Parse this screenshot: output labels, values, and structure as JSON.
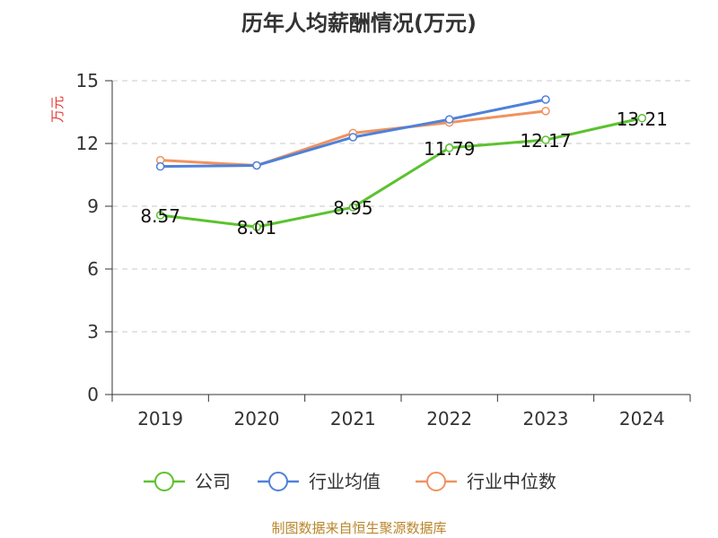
{
  "chart_data": {
    "type": "line",
    "title": "历年人均薪酬情况(万元)",
    "ylabel": "万元",
    "xlabel": "",
    "categories": [
      "2019",
      "2020",
      "2021",
      "2022",
      "2023",
      "2024"
    ],
    "ylim": [
      0,
      15
    ],
    "yticks": [
      0,
      3,
      6,
      9,
      12,
      15
    ],
    "grid": true,
    "legend_position": "bottom",
    "series": [
      {
        "name": "公司",
        "color": "#5cc22f",
        "values": [
          8.57,
          8.01,
          8.95,
          11.79,
          12.17,
          13.21
        ],
        "labels": [
          "8.57",
          "8.01",
          "8.95",
          "11.79",
          "12.17",
          "13.21"
        ]
      },
      {
        "name": "行业均值",
        "color": "#4f81d9",
        "values": [
          10.9,
          10.95,
          12.3,
          13.15,
          14.1,
          null
        ],
        "labels": null
      },
      {
        "name": "行业中位数",
        "color": "#f0925f",
        "values": [
          11.2,
          10.95,
          12.5,
          13.0,
          13.55,
          null
        ],
        "labels": null
      }
    ]
  },
  "footer": {
    "source": "制图数据来自恒生聚源数据库"
  }
}
